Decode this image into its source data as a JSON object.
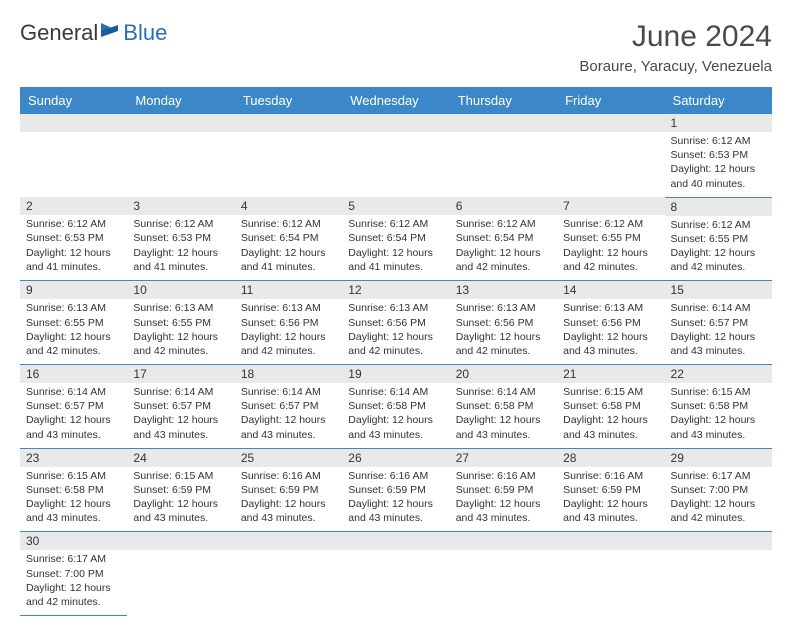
{
  "logo": {
    "text1": "General",
    "text2": "Blue"
  },
  "title": "June 2024",
  "location": "Boraure, Yaracuy, Venezuela",
  "colors": {
    "header_bg": "#3b87c8",
    "header_text": "#ffffff",
    "daynum_bg": "#e9e9e9",
    "border": "#3b87c8",
    "logo_blue": "#2c6fb5"
  },
  "weekdays": [
    "Sunday",
    "Monday",
    "Tuesday",
    "Wednesday",
    "Thursday",
    "Friday",
    "Saturday"
  ],
  "weeks": [
    [
      null,
      null,
      null,
      null,
      null,
      null,
      {
        "n": "1",
        "sr": "6:12 AM",
        "ss": "6:53 PM",
        "dl": "12 hours and 40 minutes."
      }
    ],
    [
      {
        "n": "2",
        "sr": "6:12 AM",
        "ss": "6:53 PM",
        "dl": "12 hours and 41 minutes."
      },
      {
        "n": "3",
        "sr": "6:12 AM",
        "ss": "6:53 PM",
        "dl": "12 hours and 41 minutes."
      },
      {
        "n": "4",
        "sr": "6:12 AM",
        "ss": "6:54 PM",
        "dl": "12 hours and 41 minutes."
      },
      {
        "n": "5",
        "sr": "6:12 AM",
        "ss": "6:54 PM",
        "dl": "12 hours and 41 minutes."
      },
      {
        "n": "6",
        "sr": "6:12 AM",
        "ss": "6:54 PM",
        "dl": "12 hours and 42 minutes."
      },
      {
        "n": "7",
        "sr": "6:12 AM",
        "ss": "6:55 PM",
        "dl": "12 hours and 42 minutes."
      },
      {
        "n": "8",
        "sr": "6:12 AM",
        "ss": "6:55 PM",
        "dl": "12 hours and 42 minutes."
      }
    ],
    [
      {
        "n": "9",
        "sr": "6:13 AM",
        "ss": "6:55 PM",
        "dl": "12 hours and 42 minutes."
      },
      {
        "n": "10",
        "sr": "6:13 AM",
        "ss": "6:55 PM",
        "dl": "12 hours and 42 minutes."
      },
      {
        "n": "11",
        "sr": "6:13 AM",
        "ss": "6:56 PM",
        "dl": "12 hours and 42 minutes."
      },
      {
        "n": "12",
        "sr": "6:13 AM",
        "ss": "6:56 PM",
        "dl": "12 hours and 42 minutes."
      },
      {
        "n": "13",
        "sr": "6:13 AM",
        "ss": "6:56 PM",
        "dl": "12 hours and 42 minutes."
      },
      {
        "n": "14",
        "sr": "6:13 AM",
        "ss": "6:56 PM",
        "dl": "12 hours and 43 minutes."
      },
      {
        "n": "15",
        "sr": "6:14 AM",
        "ss": "6:57 PM",
        "dl": "12 hours and 43 minutes."
      }
    ],
    [
      {
        "n": "16",
        "sr": "6:14 AM",
        "ss": "6:57 PM",
        "dl": "12 hours and 43 minutes."
      },
      {
        "n": "17",
        "sr": "6:14 AM",
        "ss": "6:57 PM",
        "dl": "12 hours and 43 minutes."
      },
      {
        "n": "18",
        "sr": "6:14 AM",
        "ss": "6:57 PM",
        "dl": "12 hours and 43 minutes."
      },
      {
        "n": "19",
        "sr": "6:14 AM",
        "ss": "6:58 PM",
        "dl": "12 hours and 43 minutes."
      },
      {
        "n": "20",
        "sr": "6:14 AM",
        "ss": "6:58 PM",
        "dl": "12 hours and 43 minutes."
      },
      {
        "n": "21",
        "sr": "6:15 AM",
        "ss": "6:58 PM",
        "dl": "12 hours and 43 minutes."
      },
      {
        "n": "22",
        "sr": "6:15 AM",
        "ss": "6:58 PM",
        "dl": "12 hours and 43 minutes."
      }
    ],
    [
      {
        "n": "23",
        "sr": "6:15 AM",
        "ss": "6:58 PM",
        "dl": "12 hours and 43 minutes."
      },
      {
        "n": "24",
        "sr": "6:15 AM",
        "ss": "6:59 PM",
        "dl": "12 hours and 43 minutes."
      },
      {
        "n": "25",
        "sr": "6:16 AM",
        "ss": "6:59 PM",
        "dl": "12 hours and 43 minutes."
      },
      {
        "n": "26",
        "sr": "6:16 AM",
        "ss": "6:59 PM",
        "dl": "12 hours and 43 minutes."
      },
      {
        "n": "27",
        "sr": "6:16 AM",
        "ss": "6:59 PM",
        "dl": "12 hours and 43 minutes."
      },
      {
        "n": "28",
        "sr": "6:16 AM",
        "ss": "6:59 PM",
        "dl": "12 hours and 43 minutes."
      },
      {
        "n": "29",
        "sr": "6:17 AM",
        "ss": "7:00 PM",
        "dl": "12 hours and 42 minutes."
      }
    ],
    [
      {
        "n": "30",
        "sr": "6:17 AM",
        "ss": "7:00 PM",
        "dl": "12 hours and 42 minutes."
      },
      null,
      null,
      null,
      null,
      null,
      null
    ]
  ],
  "labels": {
    "sunrise": "Sunrise: ",
    "sunset": "Sunset: ",
    "daylight": "Daylight: "
  }
}
